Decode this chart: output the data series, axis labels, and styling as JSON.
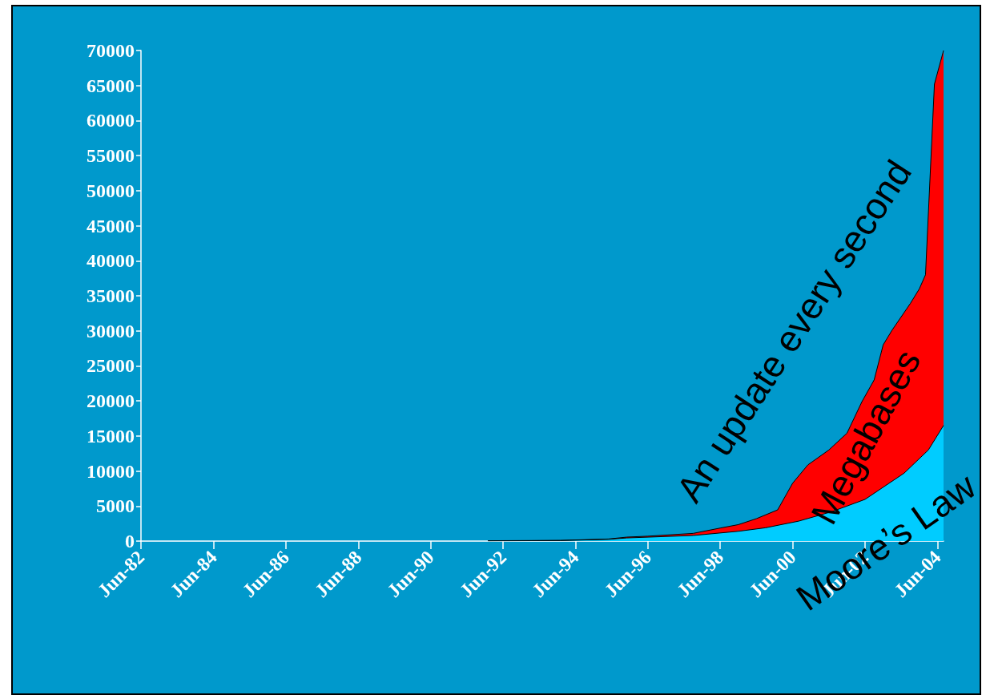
{
  "chart_data": {
    "type": "area",
    "annotations": [
      "An update every second"
    ],
    "series": [
      {
        "name": "Megabases",
        "color": "#ff0000",
        "x": [
          "1992-01",
          "1994-01",
          "1995-05",
          "1995-11",
          "1996-06",
          "1997-09",
          "1998-06",
          "1998-12",
          "1999-06",
          "2000-01",
          "2000-06",
          "2000-11",
          "2001-06",
          "2001-12",
          "2002-05",
          "2002-09",
          "2002-12",
          "2003-03",
          "2003-09",
          "2003-12",
          "2004-02",
          "2004-05",
          "2004-08"
        ],
        "values": [
          50,
          100,
          300,
          570,
          700,
          1100,
          1860,
          2350,
          3200,
          4450,
          8270,
          10870,
          13000,
          15400,
          19900,
          23000,
          28000,
          30100,
          33900,
          36000,
          38000,
          65200,
          70000
        ]
      },
      {
        "name": "Moore’s Law",
        "color": "#00ccff",
        "x": [
          "1992-01",
          "1994-01",
          "1995-05",
          "1995-11",
          "1997-09",
          "1998-12",
          "1999-09",
          "2000-08",
          "2001-07",
          "2002-06",
          "2003-07",
          "2004-03",
          "2004-08"
        ],
        "values": [
          20,
          80,
          250,
          450,
          800,
          1400,
          1900,
          2850,
          4200,
          5950,
          9700,
          13000,
          16500
        ]
      }
    ],
    "xlim": [
      "1982-06",
      "2004-08"
    ],
    "xticks": [
      {
        "value": "1982-06",
        "label": "Jun-82"
      },
      {
        "value": "1984-06",
        "label": "Jun-84"
      },
      {
        "value": "1986-06",
        "label": "Jun-86"
      },
      {
        "value": "1988-06",
        "label": "Jun-88"
      },
      {
        "value": "1990-06",
        "label": "Jun-90"
      },
      {
        "value": "1992-06",
        "label": "Jun-92"
      },
      {
        "value": "1994-06",
        "label": "Jun-94"
      },
      {
        "value": "1996-06",
        "label": "Jun-96"
      },
      {
        "value": "1998-06",
        "label": "Jun-98"
      },
      {
        "value": "2000-06",
        "label": "Jun-00"
      },
      {
        "value": "2002-06",
        "label": "Jun-02"
      },
      {
        "value": "2004-06",
        "label": "Jun-04"
      }
    ],
    "ylim": [
      0,
      70000
    ],
    "yticks": [
      0,
      5000,
      10000,
      15000,
      20000,
      25000,
      30000,
      35000,
      40000,
      45000,
      50000,
      55000,
      60000,
      65000,
      70000
    ],
    "grid": false,
    "legend": false
  }
}
